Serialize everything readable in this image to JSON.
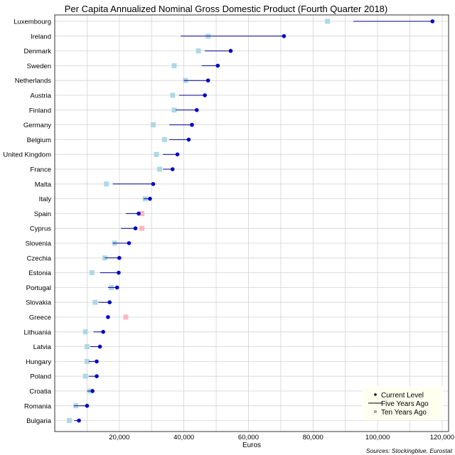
{
  "chart_data": {
    "type": "dot-range",
    "title": "Per Capita Annualized Nominal Gross Domestic Product (Fourth Quarter 2018)",
    "xlabel": "Euros",
    "ylabel": "",
    "source": "Sources: Stockingblue, Eurostat",
    "xlim": [
      0,
      122000
    ],
    "xticks": [
      20000,
      40000,
      60000,
      80000,
      100000,
      120000
    ],
    "xtick_labels": [
      "20,000",
      "40,000",
      "60,000",
      "80,000",
      "100,000",
      "120,000"
    ],
    "grid": true,
    "legend_position": "bottom-right",
    "legend": [
      {
        "key": "current",
        "label": "Current Level"
      },
      {
        "key": "five",
        "label": "Five Years Ago"
      },
      {
        "key": "ten",
        "label": "Ten Years Ago"
      }
    ],
    "colors": {
      "current": "#0000cc",
      "five": "#00008b",
      "ten_increase": "#add8e6",
      "ten_decrease": "#ffb6c1",
      "grid": "#d3d3d3",
      "legend_bg": "#fffff0"
    },
    "categories": [
      "Luxembourg",
      "Ireland",
      "Denmark",
      "Sweden",
      "Netherlands",
      "Austria",
      "Finland",
      "Germany",
      "Belgium",
      "United Kingdom",
      "France",
      "Malta",
      "Italy",
      "Spain",
      "Cyprus",
      "Slovenia",
      "Czechia",
      "Estonia",
      "Portugal",
      "Slovakia",
      "Greece",
      "Lithuania",
      "Latvia",
      "Hungary",
      "Poland",
      "Croatia",
      "Romania",
      "Bulgaria"
    ],
    "series": [
      {
        "name": "Current Level",
        "values": [
          117000,
          71000,
          54500,
          50500,
          47500,
          46500,
          44000,
          42500,
          41500,
          38000,
          36500,
          30500,
          29500,
          26000,
          25000,
          23000,
          20000,
          19800,
          19300,
          17000,
          16500,
          15000,
          14000,
          13000,
          13000,
          11700,
          10000,
          7500
        ]
      },
      {
        "name": "Five Years Ago",
        "values": [
          92500,
          39000,
          46500,
          45500,
          40000,
          38500,
          37500,
          35500,
          35500,
          33500,
          33500,
          18000,
          27500,
          22000,
          20500,
          18000,
          15500,
          14000,
          16500,
          13500,
          17000,
          12000,
          11000,
          10500,
          10500,
          10000,
          6000,
          6000
        ]
      },
      {
        "name": "Ten Years Ago",
        "values": [
          84500,
          47500,
          44500,
          37000,
          40500,
          36500,
          37000,
          30500,
          34000,
          31500,
          32500,
          16000,
          28000,
          27000,
          27000,
          18500,
          15500,
          11500,
          17500,
          12500,
          22000,
          9500,
          10000,
          10000,
          9500,
          11000,
          6500,
          4500
        ]
      }
    ]
  }
}
